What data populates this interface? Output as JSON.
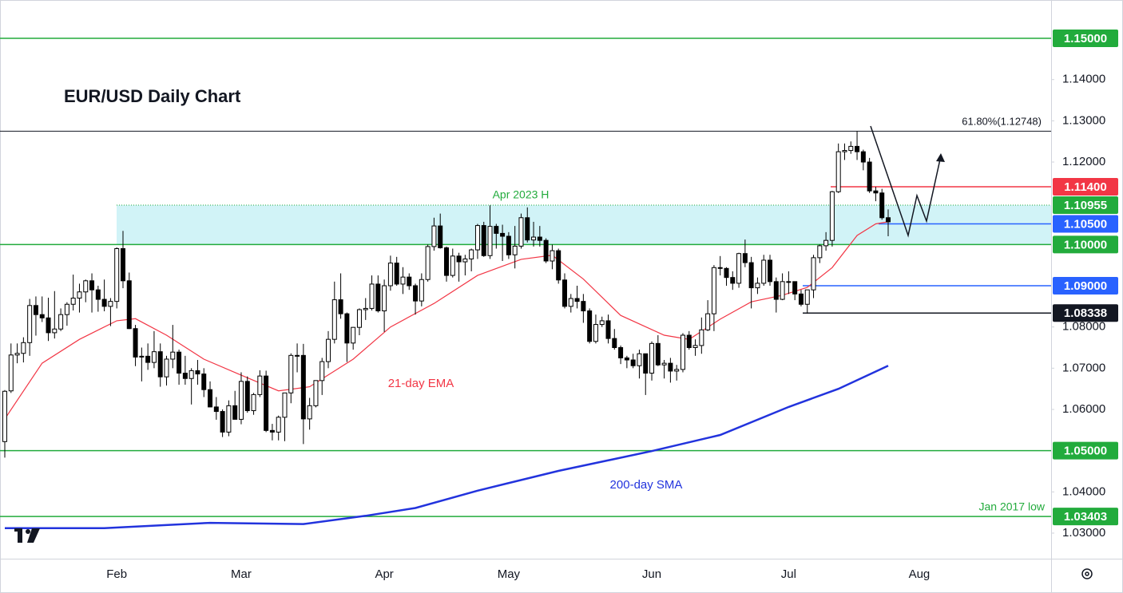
{
  "chart_data": {
    "type": "candlestick",
    "title": "EUR/USD Daily Chart",
    "categories": [
      null,
      null,
      null,
      null,
      null,
      null,
      null,
      null,
      null,
      null,
      null,
      null,
      null,
      null,
      null,
      null,
      null,
      null,
      "Feb",
      null,
      null,
      null,
      null,
      null,
      null,
      null,
      null,
      null,
      null,
      null,
      null,
      null,
      null,
      null,
      null,
      null,
      null,
      null,
      "Mar",
      null,
      null,
      null,
      null,
      null,
      null,
      null,
      null,
      null,
      null,
      null,
      null,
      null,
      null,
      null,
      null,
      null,
      null,
      null,
      null,
      null,
      null,
      "Apr",
      null,
      null,
      null,
      null,
      null,
      null,
      null,
      null,
      null,
      null,
      null,
      null,
      null,
      null,
      null,
      null,
      null,
      null,
      null,
      "May",
      null,
      null,
      null,
      null,
      null,
      null,
      null,
      null,
      null,
      null,
      null,
      null,
      null,
      null,
      null,
      null,
      null,
      null,
      null,
      null,
      null,
      null,
      "Jun",
      null,
      null,
      null,
      null,
      null,
      null,
      null,
      null,
      null,
      null,
      null,
      null,
      null,
      null,
      null,
      null,
      null,
      null,
      null,
      null,
      null,
      "Jul",
      null,
      null,
      null,
      null,
      null,
      null,
      null,
      null,
      null,
      null,
      null,
      null,
      null,
      null,
      null,
      null,
      null,
      null,
      null,
      null,
      "Aug"
    ],
    "ohlc": [
      [
        1.0522,
        1.0647,
        1.0483,
        1.0644
      ],
      [
        1.0645,
        1.076,
        1.064,
        1.0732
      ],
      [
        1.0732,
        1.076,
        1.0712,
        1.0736
      ],
      [
        1.0736,
        1.0775,
        1.0714,
        1.0762
      ],
      [
        1.0762,
        1.0868,
        1.073,
        1.0852
      ],
      [
        1.0852,
        1.0874,
        1.0779,
        1.083
      ],
      [
        1.083,
        1.0874,
        1.0812,
        1.0822
      ],
      [
        1.0822,
        1.0871,
        1.0766,
        1.0786
      ],
      [
        1.0786,
        1.0887,
        1.0772,
        1.0795
      ],
      [
        1.0795,
        1.0845,
        1.079,
        1.083
      ],
      [
        1.083,
        1.086,
        1.0803,
        1.0855
      ],
      [
        1.0855,
        1.0927,
        1.084,
        1.087
      ],
      [
        1.087,
        1.0905,
        1.0835,
        1.0885
      ],
      [
        1.0885,
        1.0915,
        1.086,
        1.0912
      ],
      [
        1.0912,
        1.093,
        1.0835,
        1.089
      ],
      [
        1.089,
        1.09,
        1.0837,
        1.0867
      ],
      [
        1.0867,
        1.0915,
        1.0838,
        1.085
      ],
      [
        1.085,
        1.087,
        1.0802,
        1.0862
      ],
      [
        1.0862,
        1.0993,
        1.0845,
        1.099
      ],
      [
        1.099,
        1.1033,
        1.0894,
        1.0912
      ],
      [
        1.0912,
        1.0932,
        1.0795,
        1.0796
      ],
      [
        1.0796,
        1.0805,
        1.0705,
        1.0727
      ],
      [
        1.0727,
        1.075,
        1.0668,
        1.0729
      ],
      [
        1.0729,
        1.076,
        1.0696,
        1.0714
      ],
      [
        1.0714,
        1.079,
        1.07,
        1.074
      ],
      [
        1.074,
        1.076,
        1.0655,
        1.0679
      ],
      [
        1.0679,
        1.073,
        1.0658,
        1.0722
      ],
      [
        1.0722,
        1.0805,
        1.07,
        1.0739
      ],
      [
        1.0739,
        1.0745,
        1.066,
        1.0688
      ],
      [
        1.0688,
        1.073,
        1.066,
        1.0675
      ],
      [
        1.0675,
        1.07,
        1.0612,
        1.0694
      ],
      [
        1.0694,
        1.072,
        1.066,
        1.0686
      ],
      [
        1.0686,
        1.07,
        1.063,
        1.0648
      ],
      [
        1.0648,
        1.0668,
        1.0605,
        1.0606
      ],
      [
        1.0606,
        1.063,
        1.0575,
        1.0595
      ],
      [
        1.0595,
        1.06,
        1.0533,
        1.0545
      ],
      [
        1.0545,
        1.0622,
        1.0535,
        1.0609
      ],
      [
        1.0609,
        1.0645,
        1.0577,
        1.0576
      ],
      [
        1.0576,
        1.069,
        1.0564,
        1.0668
      ],
      [
        1.0668,
        1.068,
        1.0592,
        1.0597
      ],
      [
        1.0597,
        1.064,
        1.0587,
        1.0636
      ],
      [
        1.0636,
        1.0695,
        1.063,
        1.0681
      ],
      [
        1.0681,
        1.0694,
        1.0545,
        1.0549
      ],
      [
        1.0549,
        1.0565,
        1.0525,
        1.0545
      ],
      [
        1.0545,
        1.0585,
        1.0525,
        1.0581
      ],
      [
        1.0581,
        1.064,
        1.0523,
        1.064
      ],
      [
        1.064,
        1.0736,
        1.0615,
        1.0731
      ],
      [
        1.0731,
        1.076,
        1.069,
        1.0731
      ],
      [
        1.0731,
        1.0759,
        1.0516,
        1.0577
      ],
      [
        1.0577,
        1.0628,
        1.0551,
        1.0609
      ],
      [
        1.0609,
        1.067,
        1.0605,
        1.067
      ],
      [
        1.067,
        1.0725,
        1.0635,
        1.0716
      ],
      [
        1.0716,
        1.079,
        1.07,
        1.077
      ],
      [
        1.077,
        1.091,
        1.076,
        1.0866
      ],
      [
        1.0866,
        1.093,
        1.082,
        1.0832
      ],
      [
        1.0832,
        1.0835,
        1.0715,
        1.0761
      ],
      [
        1.0761,
        1.08,
        1.0745,
        1.0799
      ],
      [
        1.0799,
        1.0845,
        1.078,
        1.0842
      ],
      [
        1.0842,
        1.087,
        1.0817,
        1.0845
      ],
      [
        1.0845,
        1.0925,
        1.084,
        1.0904
      ],
      [
        1.0904,
        1.0925,
        1.0835,
        1.0839
      ],
      [
        1.0839,
        1.0915,
        1.0788,
        1.09
      ],
      [
        1.09,
        1.0973,
        1.0888,
        1.0955
      ],
      [
        1.0955,
        1.097,
        1.09,
        1.0904
      ],
      [
        1.0904,
        1.0945,
        1.088,
        1.0921
      ],
      [
        1.0921,
        1.093,
        1.089,
        1.09
      ],
      [
        1.09,
        1.0905,
        1.083,
        1.0863
      ],
      [
        1.0863,
        1.093,
        1.085,
        1.0915
      ],
      [
        1.0915,
        1.1,
        1.091,
        1.0995
      ],
      [
        1.0995,
        1.1065,
        1.0985,
        1.1045
      ],
      [
        1.1045,
        1.1075,
        1.099,
        1.0992
      ],
      [
        1.0992,
        1.0995,
        1.091,
        1.0925
      ],
      [
        1.0925,
        1.099,
        1.092,
        1.0972
      ],
      [
        1.0972,
        1.098,
        1.091,
        1.0958
      ],
      [
        1.0958,
        1.0975,
        1.0925,
        1.0965
      ],
      [
        1.0965,
        1.099,
        1.0935,
        1.0987
      ],
      [
        1.0987,
        1.105,
        1.0965,
        1.1046
      ],
      [
        1.1046,
        1.1055,
        1.097,
        1.0973
      ],
      [
        1.0973,
        1.1095,
        1.0965,
        1.1044
      ],
      [
        1.1044,
        1.105,
        1.099,
        1.1027
      ],
      [
        1.1027,
        1.1048,
        1.096,
        1.102
      ],
      [
        1.102,
        1.103,
        1.0965,
        1.0975
      ],
      [
        1.0975,
        1.1045,
        1.0942,
        1.0996
      ],
      [
        1.0996,
        1.1075,
        1.099,
        1.1065
      ],
      [
        1.1065,
        1.109,
        1.1005,
        1.1011
      ],
      [
        1.1011,
        1.1055,
        1.0995,
        1.1018
      ],
      [
        1.1018,
        1.1045,
        1.0995,
        1.101
      ],
      [
        1.101,
        1.1015,
        1.0955,
        1.096
      ],
      [
        1.096,
        1.1,
        1.094,
        1.0985
      ],
      [
        1.0985,
        1.099,
        1.0905,
        1.0914
      ],
      [
        1.0914,
        1.093,
        1.0845,
        1.085
      ],
      [
        1.085,
        1.088,
        1.0835,
        1.0869
      ],
      [
        1.0869,
        1.09,
        1.0845,
        1.0862
      ],
      [
        1.0862,
        1.088,
        1.081,
        1.0839
      ],
      [
        1.0839,
        1.0845,
        1.076,
        1.0765
      ],
      [
        1.0765,
        1.083,
        1.076,
        1.0806
      ],
      [
        1.0806,
        1.0825,
        1.08,
        1.0815
      ],
      [
        1.0815,
        1.083,
        1.076,
        1.0772
      ],
      [
        1.0772,
        1.0795,
        1.0745,
        1.075
      ],
      [
        1.075,
        1.0755,
        1.071,
        1.0725
      ],
      [
        1.0725,
        1.073,
        1.07,
        1.072
      ],
      [
        1.072,
        1.0735,
        1.07,
        1.0706
      ],
      [
        1.0706,
        1.0745,
        1.0675,
        1.0735
      ],
      [
        1.0735,
        1.0735,
        1.0635,
        1.0688
      ],
      [
        1.0688,
        1.0765,
        1.067,
        1.076
      ],
      [
        1.076,
        1.078,
        1.0705,
        1.0708
      ],
      [
        1.0708,
        1.072,
        1.0675,
        1.0712
      ],
      [
        1.0712,
        1.0725,
        1.0665,
        1.0693
      ],
      [
        1.0693,
        1.0708,
        1.067,
        1.0697
      ],
      [
        1.0697,
        1.0785,
        1.069,
        1.078
      ],
      [
        1.078,
        1.079,
        1.0745,
        1.075
      ],
      [
        1.075,
        1.077,
        1.073,
        1.0755
      ],
      [
        1.0755,
        1.0823,
        1.0735,
        1.0793
      ],
      [
        1.0793,
        1.0865,
        1.079,
        1.0832
      ],
      [
        1.0832,
        1.095,
        1.079,
        1.0944
      ],
      [
        1.0944,
        1.0972,
        1.0925,
        1.0942
      ],
      [
        1.0942,
        1.0945,
        1.09,
        1.092
      ],
      [
        1.092,
        1.0935,
        1.089,
        1.0906
      ],
      [
        1.0906,
        1.098,
        1.0895,
        1.0978
      ],
      [
        1.0978,
        1.1012,
        1.0945,
        1.0956
      ],
      [
        1.0956,
        1.097,
        1.0845,
        1.0895
      ],
      [
        1.0895,
        1.092,
        1.088,
        1.0906
      ],
      [
        1.0906,
        1.0975,
        1.09,
        1.0962
      ],
      [
        1.0962,
        1.0975,
        1.09,
        1.091
      ],
      [
        1.091,
        1.092,
        1.0835,
        1.0867
      ],
      [
        1.0867,
        1.093,
        1.0865,
        1.091
      ],
      [
        1.091,
        1.0935,
        1.088,
        1.091
      ],
      [
        1.091,
        1.091,
        1.0865,
        1.088
      ],
      [
        1.088,
        1.089,
        1.085,
        1.0855
      ],
      [
        1.0855,
        1.089,
        1.0833,
        1.089
      ],
      [
        1.089,
        1.0975,
        1.087,
        1.0968
      ],
      [
        1.0968,
        1.1,
        1.0955,
        1.0997
      ],
      [
        1.0997,
        1.103,
        1.0985,
        1.101
      ],
      [
        1.101,
        1.113,
        1.0995,
        1.1128
      ],
      [
        1.1128,
        1.1245,
        1.1125,
        1.1225
      ],
      [
        1.1225,
        1.1245,
        1.1205,
        1.1228
      ],
      [
        1.1228,
        1.125,
        1.122,
        1.1238
      ],
      [
        1.1238,
        1.1275,
        1.1205,
        1.1225
      ],
      [
        1.1225,
        1.123,
        1.118,
        1.12
      ],
      [
        1.12,
        1.121,
        1.1125,
        1.113
      ],
      [
        1.113,
        1.114,
        1.1105,
        1.1125
      ],
      [
        1.1125,
        1.1135,
        1.106,
        1.1065
      ],
      [
        1.1065,
        1.1085,
        1.102,
        1.1055
      ],
      null,
      null,
      null,
      null,
      null
    ],
    "ylim": [
      1.0238,
      1.1593
    ],
    "yticks": [
      {
        "value": 1.03,
        "label": "1.03000"
      },
      {
        "value": 1.04,
        "label": "1.04000"
      },
      {
        "value": 1.06,
        "label": "1.06000"
      },
      {
        "value": 1.07,
        "label": "1.07000"
      },
      {
        "value": 1.08,
        "label": "1.08000"
      },
      {
        "value": 1.12,
        "label": "1.12000"
      },
      {
        "value": 1.13,
        "label": "1.13000"
      },
      {
        "value": 1.14,
        "label": "1.14000"
      }
    ],
    "up_color": "#ffffff",
    "down_color": "#000000",
    "lines": [
      {
        "label": "21-day EMA",
        "color": "#f23645",
        "x": [
          0,
          6,
          12,
          18,
          21,
          26,
          32,
          38,
          44,
          49,
          56,
          62,
          69,
          76,
          83,
          88,
          93,
          99,
          106,
          110,
          115,
          120,
          125,
          129,
          133,
          137,
          140,
          142
        ],
        "values": [
          1.0577,
          1.0712,
          1.077,
          1.0815,
          1.082,
          1.078,
          1.0722,
          1.0683,
          1.0645,
          1.0655,
          1.0722,
          1.08,
          1.0857,
          1.0925,
          1.0964,
          1.0974,
          1.0916,
          1.0828,
          1.078,
          1.077,
          1.0819,
          1.0861,
          1.0877,
          1.0896,
          1.0944,
          1.1022,
          1.105,
          1.1055
        ]
      },
      {
        "label": "200-day SMA",
        "color": "#2233dd",
        "x": [
          0,
          16,
          33,
          48,
          58,
          66,
          76,
          89,
          104,
          115,
          126,
          134,
          142
        ],
        "values": [
          1.0312,
          1.0312,
          1.0325,
          1.0322,
          1.0342,
          1.0361,
          1.0403,
          1.0451,
          1.0499,
          1.0538,
          1.0606,
          1.065,
          1.0706
        ]
      }
    ],
    "levels": [
      {
        "value": 1.15,
        "label": "1.15000",
        "color": "#22ab3c"
      },
      {
        "value": 1.114,
        "label": "1.11400",
        "color": "#f23645"
      },
      {
        "value": 1.10955,
        "label": "1.10955",
        "color": "#22ab3c"
      },
      {
        "value": 1.105,
        "label": "1.10500",
        "color": "#2962ff"
      },
      {
        "value": 1.1,
        "label": "1.10000",
        "color": "#22ab3c"
      },
      {
        "value": 1.09,
        "label": "1.09000",
        "color": "#2962ff"
      },
      {
        "value": 1.08338,
        "label": "1.08338",
        "color": "#131722"
      },
      {
        "value": 1.05,
        "label": "1.05000",
        "color": "#22ab3c"
      },
      {
        "value": 1.03403,
        "label": "1.03403",
        "color": "#22ab3c"
      }
    ],
    "fib": {
      "value": 1.12748,
      "label": "61.80%(1.12748)"
    },
    "annotations": {
      "apr_high": "Apr 2023 H",
      "jan_low": "Jan 2017 low"
    }
  }
}
